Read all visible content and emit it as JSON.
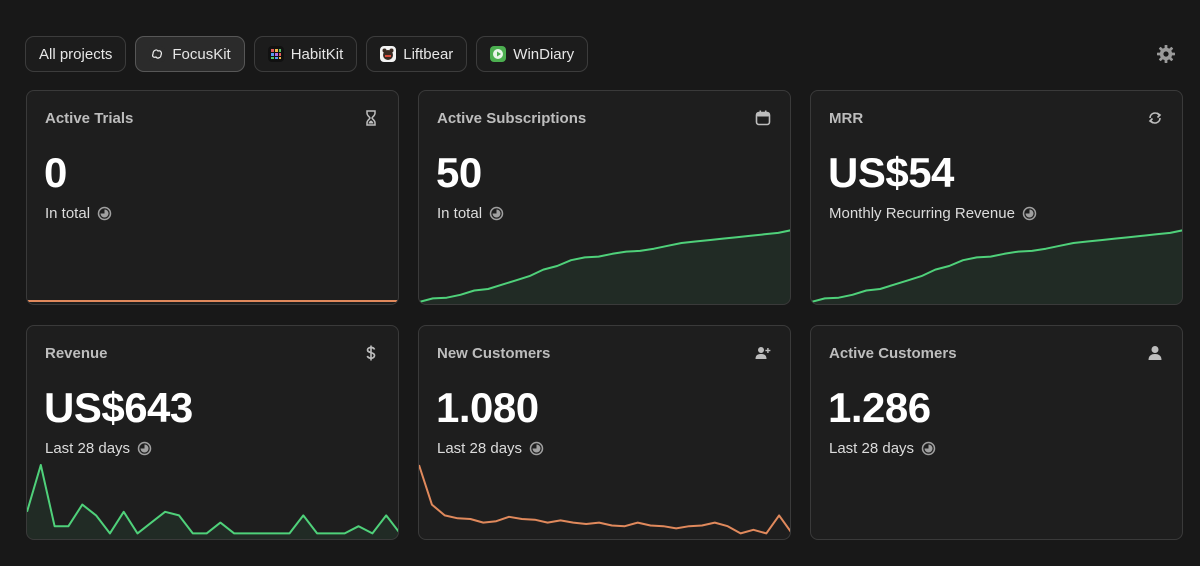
{
  "tabs": [
    {
      "label": "All projects",
      "active": false
    },
    {
      "label": "FocusKit",
      "active": true,
      "icon": "brain-icon"
    },
    {
      "label": "HabitKit",
      "active": false,
      "icon": "habit-grid-icon"
    },
    {
      "label": "Liftbear",
      "active": false,
      "icon": "bear-icon"
    },
    {
      "label": "WinDiary",
      "active": false,
      "icon": "play-icon"
    }
  ],
  "settings_icon": "gear-icon",
  "colors": {
    "up": "#4fd17a",
    "down": "#e0895c",
    "flat": "#e0895c"
  },
  "cards": [
    {
      "title": "Active Trials",
      "value": "0",
      "subtitle": "In total",
      "icon": "hourglass-icon",
      "trend": [
        0,
        0,
        0,
        0,
        0,
        0,
        0,
        0,
        0,
        0,
        0,
        0,
        0,
        0,
        0,
        0,
        0,
        0,
        0,
        0,
        0,
        0,
        0,
        0,
        0,
        0,
        0,
        0,
        0
      ],
      "kind": "flat"
    },
    {
      "title": "Active Subscriptions",
      "value": "50",
      "subtitle": "In total",
      "icon": "calendar-icon",
      "trend": [
        0,
        0.05,
        0.06,
        0.1,
        0.16,
        0.18,
        0.24,
        0.3,
        0.36,
        0.45,
        0.5,
        0.58,
        0.62,
        0.63,
        0.67,
        0.7,
        0.71,
        0.74,
        0.78,
        0.82,
        0.84,
        0.86,
        0.88,
        0.9,
        0.92,
        0.94,
        0.96,
        1
      ],
      "kind": "up"
    },
    {
      "title": "MRR",
      "value": "US$54",
      "subtitle": "Monthly Recurring Revenue",
      "icon": "refresh-icon",
      "trend": [
        0,
        0.05,
        0.06,
        0.1,
        0.16,
        0.18,
        0.24,
        0.3,
        0.36,
        0.45,
        0.5,
        0.58,
        0.62,
        0.63,
        0.67,
        0.7,
        0.71,
        0.74,
        0.78,
        0.82,
        0.84,
        0.86,
        0.88,
        0.9,
        0.92,
        0.94,
        0.96,
        1
      ],
      "kind": "up"
    },
    {
      "title": "Revenue",
      "value": "US$643",
      "subtitle": "Last 28 days",
      "icon": "dollar-icon",
      "trend": [
        0.35,
        1,
        0.15,
        0.15,
        0.45,
        0.3,
        0.05,
        0.35,
        0.05,
        0.2,
        0.35,
        0.3,
        0.05,
        0.05,
        0.2,
        0.05,
        0.05,
        0.05,
        0.05,
        0.05,
        0.3,
        0.05,
        0.05,
        0.05,
        0.15,
        0.05,
        0.3,
        0.05
      ],
      "kind": "up"
    },
    {
      "title": "New Customers",
      "value": "1.080",
      "subtitle": "Last 28 days",
      "icon": "add-user-icon",
      "trend": [
        1,
        0.45,
        0.3,
        0.26,
        0.25,
        0.2,
        0.22,
        0.28,
        0.25,
        0.24,
        0.2,
        0.23,
        0.2,
        0.18,
        0.2,
        0.16,
        0.15,
        0.2,
        0.16,
        0.15,
        0.12,
        0.15,
        0.16,
        0.2,
        0.15,
        0.05,
        0.1,
        0.05,
        0.3,
        0.05
      ],
      "kind": "down"
    },
    {
      "title": "Active Customers",
      "value": "1.286",
      "subtitle": "Last 28 days",
      "icon": "user-icon",
      "trend": [],
      "kind": "none"
    }
  ]
}
